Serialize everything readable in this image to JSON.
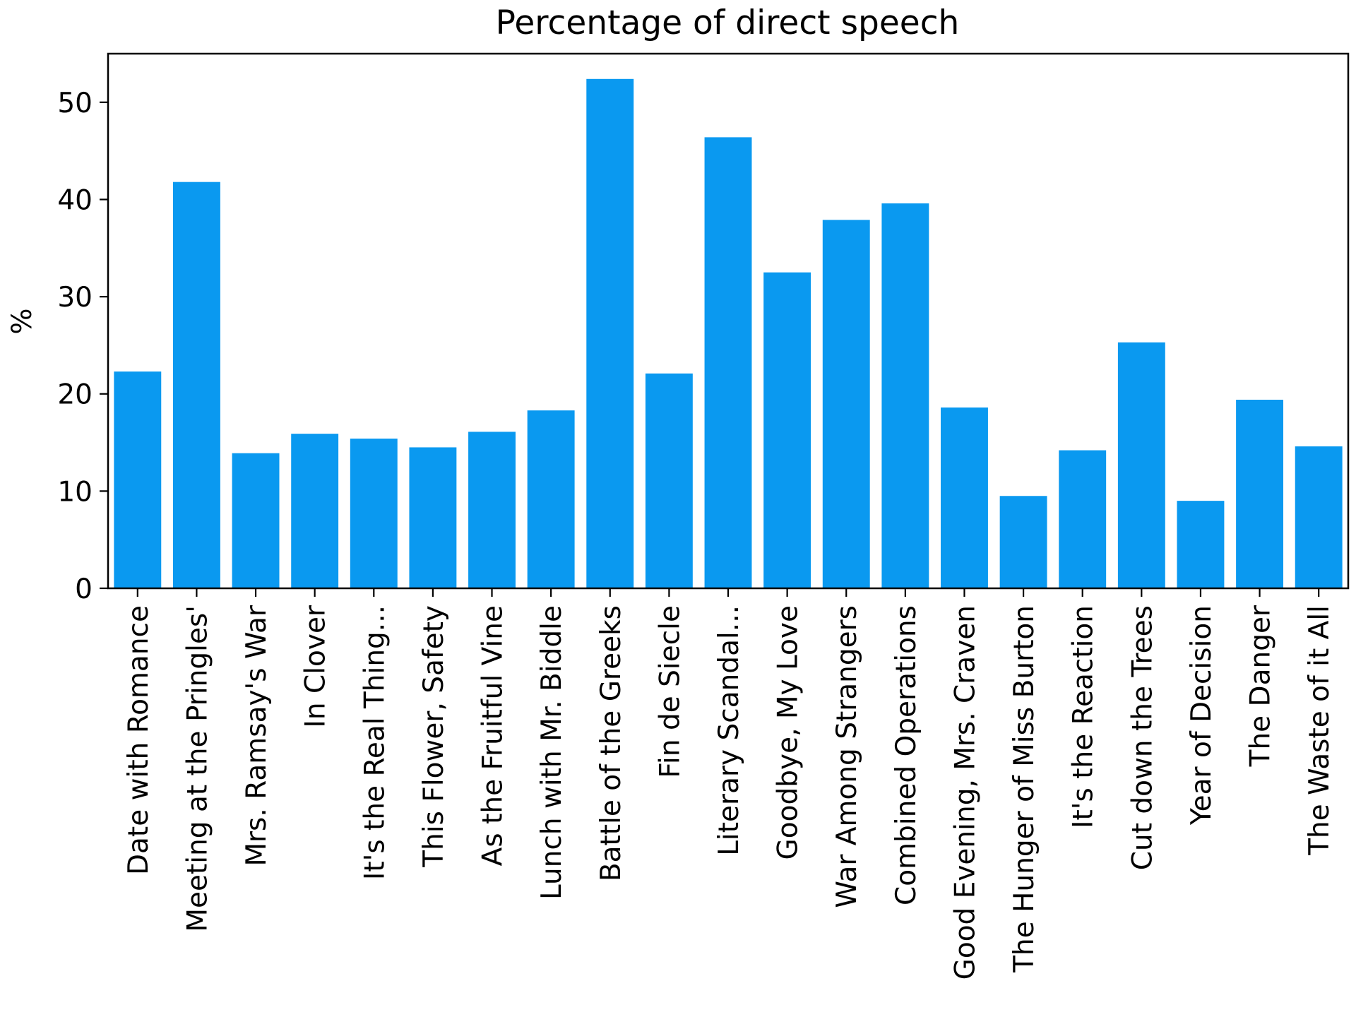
{
  "chart_data": {
    "type": "bar",
    "title": "Percentage of direct speech",
    "xlabel": "",
    "ylabel": "%",
    "categories": [
      "Date with Romance",
      "Meeting at the Pringles'",
      "Mrs. Ramsay's War",
      "In Clover",
      "It's the Real Thing...",
      "This Flower, Safety",
      "As the Fruitful Vine",
      "Lunch with Mr. Biddle",
      "Battle of the Greeks",
      "Fin de Siecle",
      "Literary Scandal...",
      "Goodbye, My Love",
      "War Among Strangers",
      "Combined Operations",
      "Good Evening, Mrs. Craven",
      "The Hunger of Miss Burton",
      "It's the Reaction",
      "Cut down the Trees",
      "Year of Decision",
      "The Danger",
      "The Waste of it All"
    ],
    "values": [
      22.3,
      41.8,
      13.9,
      15.9,
      15.4,
      14.5,
      16.1,
      18.3,
      52.4,
      22.1,
      46.4,
      32.5,
      37.9,
      39.6,
      18.6,
      9.5,
      14.2,
      25.3,
      9.0,
      19.4,
      14.6
    ],
    "ylim": [
      0,
      55
    ],
    "yticks": [
      0,
      10,
      20,
      30,
      40,
      50
    ],
    "bar_color": "#0a99f0",
    "grid": false,
    "legend": "none"
  }
}
